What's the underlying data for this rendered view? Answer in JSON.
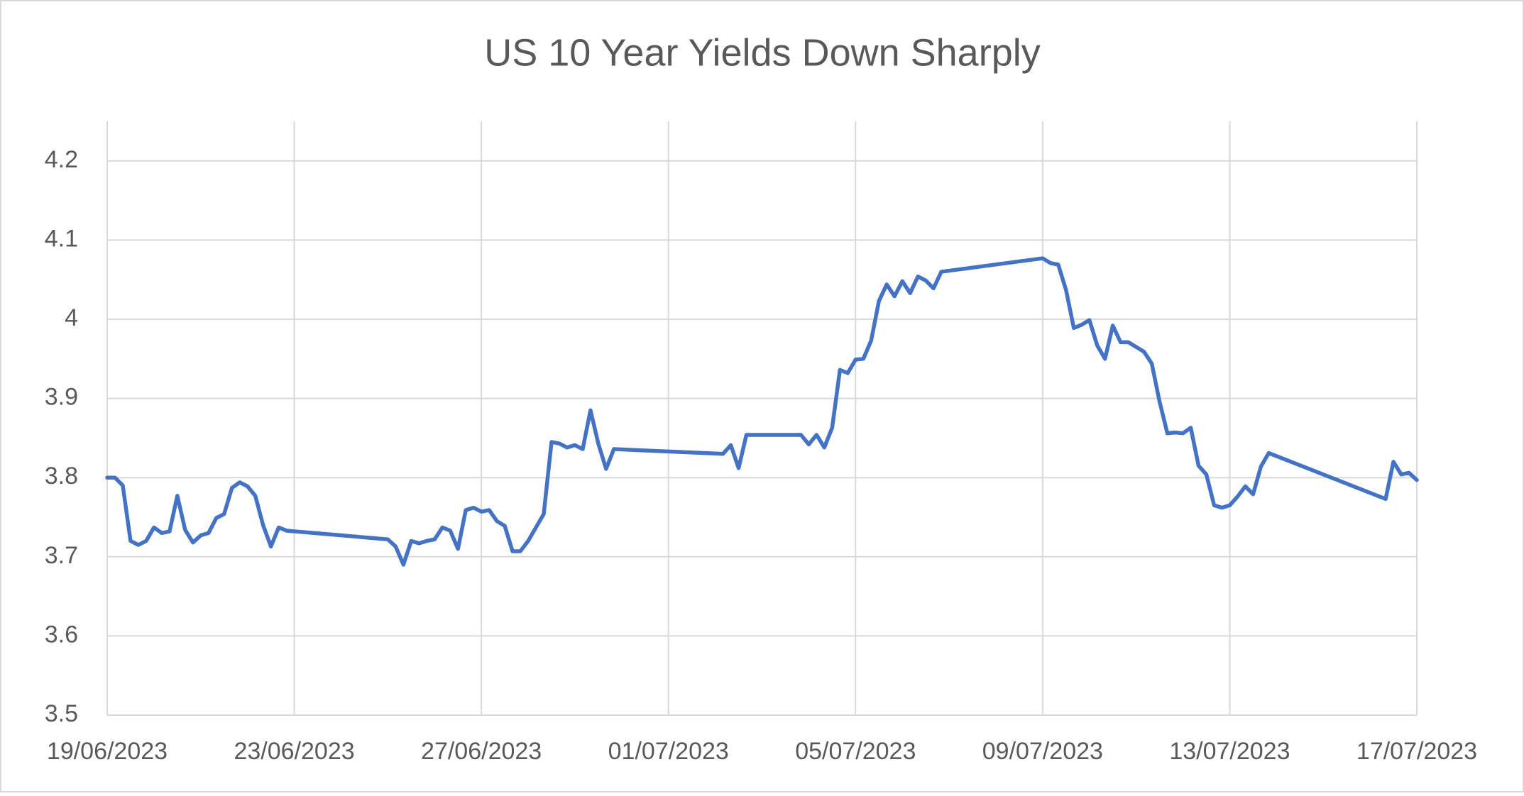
{
  "chart_data": {
    "type": "line",
    "title": "US 10 Year Yields Down Sharply",
    "color": "#4472c4",
    "grid": true,
    "x": [
      45096,
      45096.1667,
      45096.3333,
      45096.5,
      45096.6667,
      45096.8333,
      45097,
      45097.1667,
      45097.3333,
      45097.5,
      45097.6667,
      45097.8333,
      45098,
      45098.1667,
      45098.3333,
      45098.5,
      45098.6667,
      45098.8333,
      45099,
      45099.1667,
      45099.3333,
      45099.5,
      45099.6667,
      45099.8333,
      45102,
      45102.1667,
      45102.3333,
      45102.5,
      45102.6667,
      45102.8333,
      45103,
      45103.1667,
      45103.3333,
      45103.5,
      45103.6667,
      45103.8333,
      45104,
      45104.1667,
      45104.3333,
      45104.5,
      45104.6667,
      45104.8333,
      45105,
      45105.1667,
      45105.3333,
      45105.5,
      45105.6667,
      45105.8333,
      45106,
      45106.1667,
      45106.3333,
      45106.5,
      45106.6667,
      45106.8333,
      45109.1667,
      45109.3333,
      45109.5,
      45109.6667,
      45110.8333,
      45111,
      45111.1667,
      45111.3333,
      45111.5,
      45111.6667,
      45111.8333,
      45112,
      45112.1667,
      45112.3333,
      45112.5,
      45112.6667,
      45112.8333,
      45113,
      45113.1667,
      45113.3333,
      45113.5,
      45113.6667,
      45113.8333,
      45116,
      45116.1667,
      45116.3333,
      45116.5,
      45116.6667,
      45116.8333,
      45117,
      45117.1667,
      45117.3333,
      45117.5,
      45117.6667,
      45117.8333,
      45118,
      45118.1667,
      45118.3333,
      45118.5,
      45118.6667,
      45118.8333,
      45119,
      45119.1667,
      45119.3333,
      45119.5,
      45119.6667,
      45119.8333,
      45120,
      45120.1667,
      45120.3333,
      45120.5,
      45120.6667,
      45120.8333,
      45123.3333,
      45123.5,
      45123.6667,
      45123.8333,
      45124
    ],
    "values": [
      3.8,
      3.8,
      3.79,
      3.72,
      3.715,
      3.72,
      3.737,
      3.73,
      3.732,
      3.777,
      3.734,
      3.718,
      3.727,
      3.73,
      3.749,
      3.754,
      3.787,
      3.794,
      3.789,
      3.777,
      3.74,
      3.713,
      3.737,
      3.733,
      3.722,
      3.713,
      3.69,
      3.72,
      3.717,
      3.72,
      3.722,
      3.737,
      3.733,
      3.71,
      3.759,
      3.762,
      3.757,
      3.759,
      3.745,
      3.739,
      3.707,
      3.707,
      3.72,
      3.737,
      3.754,
      3.845,
      3.843,
      3.838,
      3.841,
      3.836,
      3.885,
      3.843,
      3.811,
      3.836,
      3.83,
      3.841,
      3.812,
      3.854,
      3.854,
      3.842,
      3.854,
      3.838,
      3.863,
      3.936,
      3.932,
      3.949,
      3.95,
      3.973,
      4.023,
      4.044,
      4.029,
      4.048,
      4.033,
      4.054,
      4.049,
      4.039,
      4.06,
      4.077,
      4.071,
      4.069,
      4.037,
      3.989,
      3.993,
      3.999,
      3.967,
      3.95,
      3.992,
      3.971,
      3.971,
      3.965,
      3.959,
      3.944,
      3.896,
      3.856,
      3.857,
      3.856,
      3.863,
      3.815,
      3.804,
      3.765,
      3.762,
      3.765,
      3.776,
      3.789,
      3.779,
      3.814,
      3.831,
      3.773,
      3.82,
      3.804,
      3.806,
      3.797
    ],
    "xlim": [
      45096,
      45124
    ],
    "xticks": [
      {
        "value": 45096,
        "label": "19/06/2023"
      },
      {
        "value": 45100,
        "label": "23/06/2023"
      },
      {
        "value": 45104,
        "label": "27/06/2023"
      },
      {
        "value": 45108,
        "label": "01/07/2023"
      },
      {
        "value": 45112,
        "label": "05/07/2023"
      },
      {
        "value": 45116,
        "label": "09/07/2023"
      },
      {
        "value": 45120,
        "label": "13/07/2023"
      },
      {
        "value": 45124,
        "label": "17/07/2023"
      }
    ],
    "ylim": [
      3.5,
      4.25
    ],
    "yticks": [
      3.5,
      3.6,
      3.7,
      3.8,
      3.9,
      4,
      4.1,
      4.2
    ]
  }
}
